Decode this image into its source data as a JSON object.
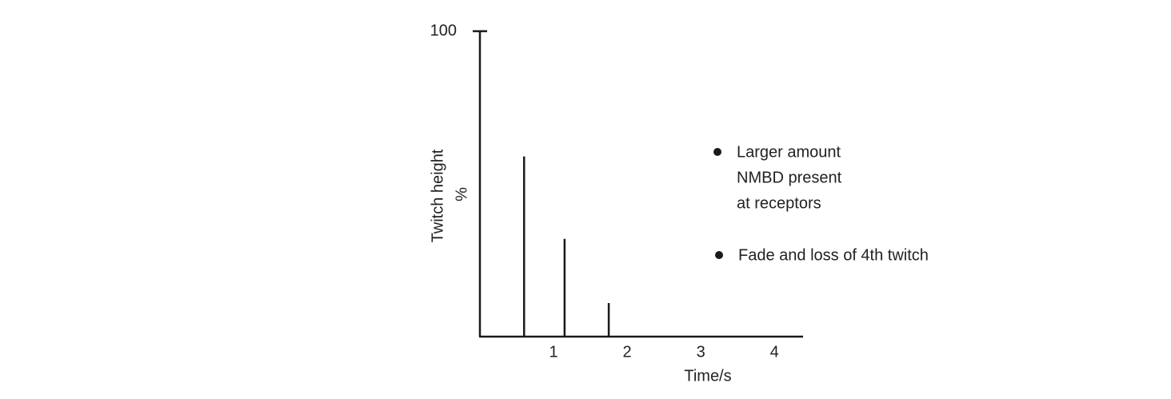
{
  "chart_data": {
    "type": "bar",
    "x": [
      0.6,
      1.15,
      1.75
    ],
    "values": [
      59,
      32,
      11
    ],
    "color": "#1a1a1a",
    "xlim": [
      0,
      4.4
    ],
    "xticks": [
      1,
      2,
      3,
      4
    ],
    "ylim": [
      0,
      100
    ],
    "yticks": [
      100
    ],
    "xlabel": "Time/s",
    "ylabel": [
      "Twitch height",
      "%"
    ],
    "annotations": [
      [
        "Larger amount",
        "NMBD present",
        "at receptors"
      ],
      [
        "Fade and loss of 4th twitch"
      ]
    ]
  }
}
